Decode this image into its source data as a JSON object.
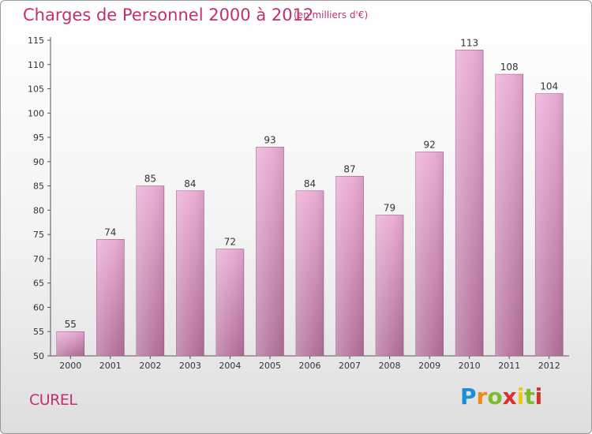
{
  "header": {
    "title": "Charges de Personnel 2000 à 2012",
    "subtitle": "(en milliers d'€)"
  },
  "footer": {
    "commune": "CUREL",
    "logo": "Proxiti"
  },
  "colors": {
    "bar_light": "#e8a8d0",
    "bar_dark": "#b06a96",
    "title": "#c0306e"
  },
  "chart_data": {
    "type": "bar",
    "title": "Charges de Personnel 2000 à 2012",
    "subtitle": "(en milliers d'€)",
    "categories": [
      "2000",
      "2001",
      "2002",
      "2003",
      "2004",
      "2005",
      "2006",
      "2007",
      "2008",
      "2009",
      "2010",
      "2011",
      "2012"
    ],
    "values": [
      55,
      74,
      85,
      84,
      72,
      93,
      84,
      87,
      79,
      92,
      113,
      108,
      104
    ],
    "ylim": [
      50,
      115
    ],
    "yticks": [
      50,
      55,
      60,
      65,
      70,
      75,
      80,
      85,
      90,
      95,
      100,
      105,
      110,
      115
    ],
    "grid": false,
    "legend": "none"
  }
}
